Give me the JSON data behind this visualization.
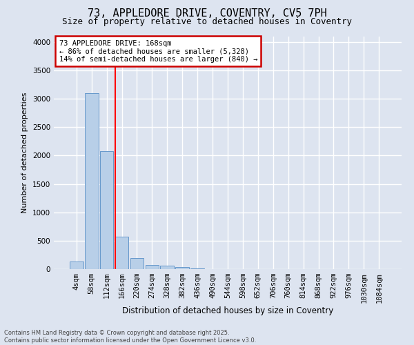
{
  "title_line1": "73, APPLEDORE DRIVE, COVENTRY, CV5 7PH",
  "title_line2": "Size of property relative to detached houses in Coventry",
  "xlabel": "Distribution of detached houses by size in Coventry",
  "ylabel": "Number of detached properties",
  "bar_color": "#b8cfe8",
  "bar_edge_color": "#6699cc",
  "background_color": "#dde4f0",
  "grid_color": "#ffffff",
  "categories": [
    "4sqm",
    "58sqm",
    "112sqm",
    "166sqm",
    "220sqm",
    "274sqm",
    "328sqm",
    "382sqm",
    "436sqm",
    "490sqm",
    "544sqm",
    "598sqm",
    "652sqm",
    "706sqm",
    "760sqm",
    "814sqm",
    "868sqm",
    "922sqm",
    "976sqm",
    "1030sqm",
    "1084sqm"
  ],
  "values": [
    130,
    3100,
    2080,
    570,
    195,
    75,
    55,
    40,
    10,
    0,
    0,
    0,
    0,
    0,
    0,
    0,
    0,
    0,
    0,
    0,
    0
  ],
  "ylim": [
    0,
    4100
  ],
  "yticks": [
    0,
    500,
    1000,
    1500,
    2000,
    2500,
    3000,
    3500,
    4000
  ],
  "redline_x": 2.55,
  "annotation_text": "73 APPLEDORE DRIVE: 168sqm\n← 86% of detached houses are smaller (5,328)\n14% of semi-detached houses are larger (840) →",
  "annotation_box_color": "#ffffff",
  "annotation_box_edge": "#cc0000",
  "footer_line1": "Contains HM Land Registry data © Crown copyright and database right 2025.",
  "footer_line2": "Contains public sector information licensed under the Open Government Licence v3.0.",
  "title_fontsize": 11,
  "subtitle_fontsize": 9,
  "tick_fontsize": 7.5,
  "ylabel_fontsize": 8,
  "xlabel_fontsize": 8.5
}
